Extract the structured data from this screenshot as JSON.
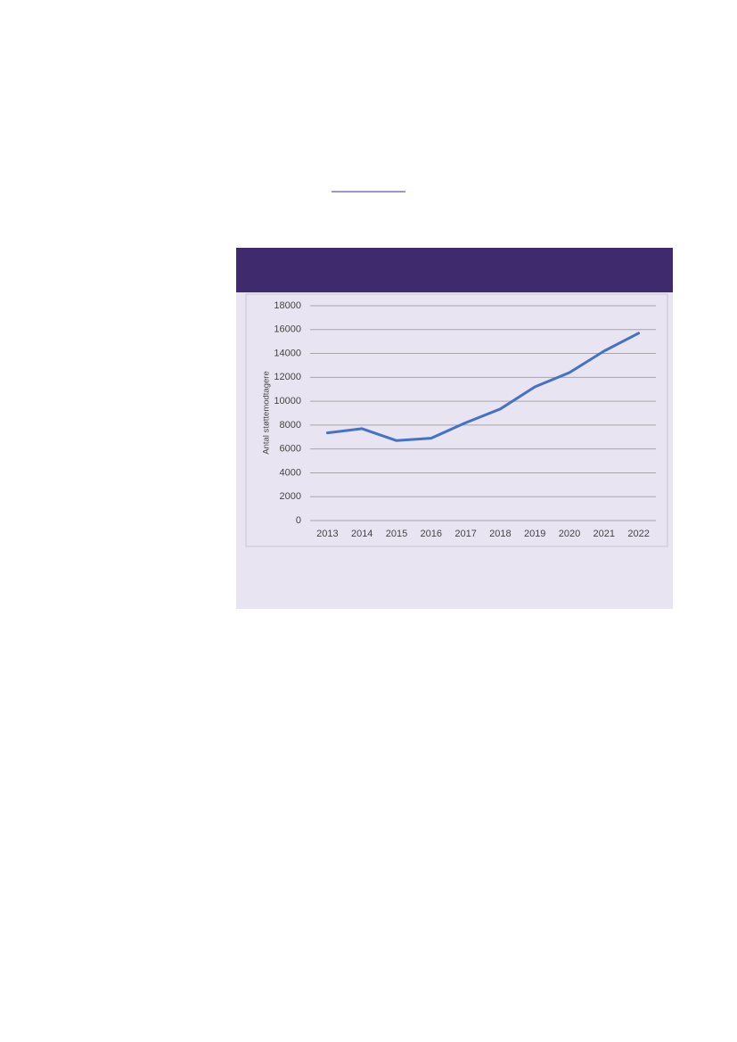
{
  "chart_data": {
    "type": "line",
    "y_label": "Antal støttemodtagere",
    "categories": [
      "2013",
      "2014",
      "2015",
      "2016",
      "2017",
      "2018",
      "2019",
      "2020",
      "2021",
      "2022"
    ],
    "series": [
      {
        "color": "#4472c4",
        "values": [
          7350,
          7700,
          6700,
          6900,
          8200,
          9350,
          11200,
          12400,
          14200,
          15700
        ]
      }
    ],
    "ylim": [
      0,
      18000
    ],
    "yticks": [
      0,
      2000,
      4000,
      6000,
      8000,
      10000,
      12000,
      14000,
      16000,
      18000
    ],
    "grid": true
  }
}
